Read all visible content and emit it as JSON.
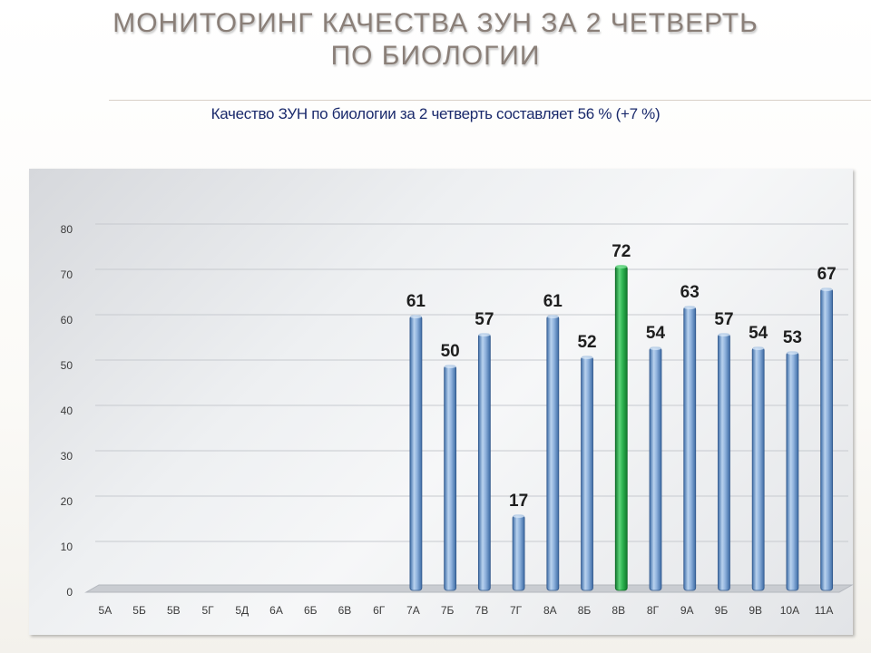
{
  "slide": {
    "title_line1": "МОНИТОРИНГ  КАЧЕСТВА ЗУН ЗА 2  ЧЕТВЕРТЬ",
    "title_line2": "ПО  БИОЛОГИИ",
    "subtitle": "Качество ЗУН по биологии  за 2 четверть  составляет 56 % (+7 %)"
  },
  "colors": {
    "bar": "#6f9bd1",
    "highlight_bar": "#2aa84a",
    "title": "#8a7f78",
    "subtitle": "#1a2a6c"
  },
  "chart_data": {
    "type": "bar",
    "categories": [
      "5А",
      "5Б",
      "5В",
      "5Г",
      "5Д",
      "6А",
      "6Б",
      "6В",
      "6Г",
      "7А",
      "7Б",
      "7В",
      "7Г",
      "8А",
      "8Б",
      "8В",
      "8Г",
      "9А",
      "9Б",
      "9В",
      "10А",
      "11А"
    ],
    "values": [
      null,
      null,
      null,
      null,
      null,
      null,
      null,
      null,
      null,
      61,
      50,
      57,
      17,
      61,
      52,
      72,
      54,
      63,
      57,
      54,
      53,
      67
    ],
    "data_labels": [
      "",
      "",
      "",
      "",
      "",
      "",
      "",
      "",
      "",
      "61",
      "50",
      "57",
      "17",
      "61",
      "52",
      "72",
      "54",
      "63",
      "57",
      "54",
      "53",
      "67"
    ],
    "highlight": "8В",
    "ylim": [
      0,
      80
    ],
    "yticks": [
      "0",
      "10",
      "20",
      "30",
      "40",
      "50",
      "60",
      "70",
      "80"
    ],
    "title": "",
    "xlabel": "",
    "ylabel": "",
    "grid": true,
    "legend": "none"
  }
}
